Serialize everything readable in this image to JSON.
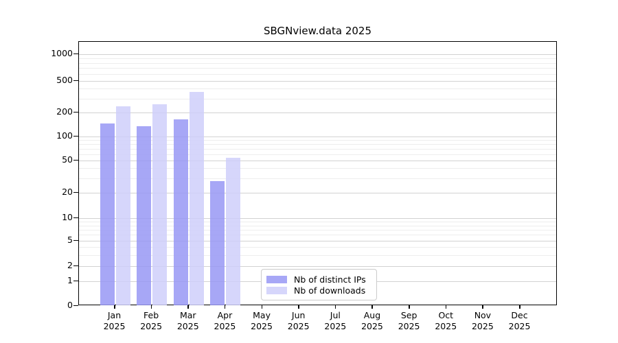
{
  "chart_data": {
    "type": "bar",
    "title": "SBGNview.data 2025",
    "categories": [
      "Jan",
      "Feb",
      "Mar",
      "Apr",
      "May",
      "Jun",
      "Jul",
      "Aug",
      "Sep",
      "Oct",
      "Nov",
      "Dec"
    ],
    "category_year": "2025",
    "series": [
      {
        "name": "Nb of distinct IPs",
        "color": "#9898f4",
        "values": [
          145,
          135,
          165,
          28,
          null,
          null,
          null,
          null,
          null,
          null,
          null,
          null
        ]
      },
      {
        "name": "Nb of downloads",
        "color": "#cfcffa",
        "values": [
          240,
          255,
          360,
          54,
          null,
          null,
          null,
          null,
          null,
          null,
          null,
          null
        ]
      }
    ],
    "yscale": "symlog",
    "y_ticks": [
      0,
      1,
      2,
      5,
      10,
      20,
      50,
      100,
      200,
      500,
      1000
    ],
    "y_minor_ticks": [
      3,
      4,
      6,
      7,
      8,
      9,
      30,
      40,
      60,
      70,
      80,
      90,
      300,
      400,
      600,
      700,
      800,
      900
    ],
    "ylim": [
      0,
      1450
    ],
    "xlabel": "",
    "ylabel": "",
    "grid": "both",
    "legend_position": "lower center",
    "colors": {
      "axis": "#000000",
      "grid_major": "#d2d2d2",
      "grid_minor": "#ededed"
    }
  }
}
